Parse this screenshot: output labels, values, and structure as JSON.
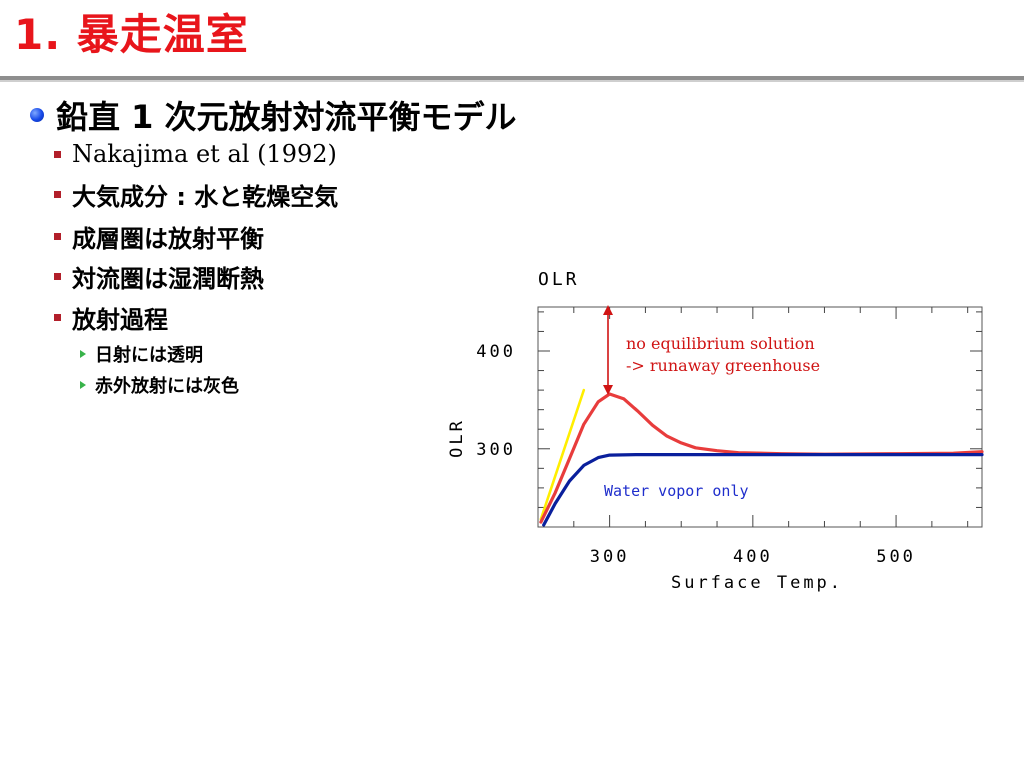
{
  "slide": {
    "title": "1. 暴走温室",
    "bullet1": "鉛直 1 次元放射対流平衡モデル",
    "items": [
      {
        "label": "Nakajima et al (1992)"
      },
      {
        "label": "大気成分 : 水と乾燥空気"
      },
      {
        "label": "成層圏は放射平衡"
      },
      {
        "label": "対流圏は湿潤断熱"
      },
      {
        "label": "放射過程"
      }
    ],
    "subitems": [
      {
        "label": "日射には透明"
      },
      {
        "label": "赤外放射には灰色"
      }
    ]
  },
  "colors": {
    "title": "#e8151b",
    "bullet_blue": "#1648e8",
    "square_bullet": "#b21f2a",
    "triangle_bullet": "#38b34a",
    "red_curve": "#e83c3c",
    "blue_curve": "#0a1f9c",
    "yellow_line": "#ffee00",
    "annotation_red": "#d01414",
    "annotation_blue": "#1f2ecc"
  },
  "chart_data": {
    "type": "line",
    "title": "OLR",
    "xlabel": "Surface Temp.",
    "ylabel": "OLR",
    "xlim": [
      250,
      560
    ],
    "ylim": [
      220,
      445
    ],
    "xticks": [
      300,
      400,
      500
    ],
    "yticks": [
      300,
      400
    ],
    "series": [
      {
        "color": "#e83c3c",
        "points": [
          [
            252,
            225
          ],
          [
            262,
            255
          ],
          [
            272,
            290
          ],
          [
            282,
            325
          ],
          [
            292,
            348
          ],
          [
            300,
            356
          ],
          [
            310,
            351
          ],
          [
            320,
            338
          ],
          [
            330,
            324
          ],
          [
            340,
            313
          ],
          [
            350,
            306
          ],
          [
            360,
            301
          ],
          [
            375,
            298
          ],
          [
            390,
            296
          ],
          [
            420,
            295
          ],
          [
            450,
            294.5
          ],
          [
            500,
            295
          ],
          [
            540,
            295.5
          ],
          [
            560,
            297
          ]
        ]
      },
      {
        "color": "#0a1f9c",
        "points": [
          [
            254,
            222
          ],
          [
            262,
            244
          ],
          [
            272,
            267
          ],
          [
            282,
            283
          ],
          [
            292,
            291
          ],
          [
            300,
            293.5
          ],
          [
            320,
            294
          ],
          [
            400,
            294
          ],
          [
            500,
            294
          ],
          [
            560,
            294
          ]
        ]
      },
      {
        "color": "#ffee00",
        "points": [
          [
            252,
            228
          ],
          [
            282,
            360
          ]
        ]
      }
    ],
    "annotations": [
      {
        "text": "no equilibrium solution",
        "color": "#d01414"
      },
      {
        "text": "-> runaway greenhouse",
        "color": "#d01414"
      },
      {
        "text": "Water vopor only",
        "color": "#1f2ecc"
      }
    ]
  }
}
